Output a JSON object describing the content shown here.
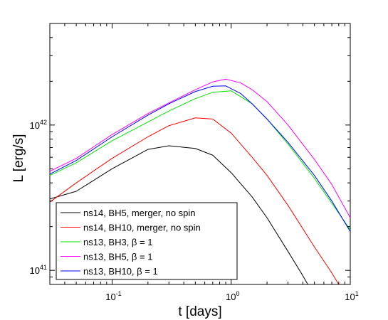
{
  "chart_data": {
    "type": "line",
    "xlabel": "t [days]",
    "ylabel": "L [erg/s]",
    "xscale": "log",
    "yscale": "log",
    "xlim": [
      0.03,
      10
    ],
    "ylim": [
      8e+40,
      5e+42
    ],
    "grid": false,
    "legend_position": "bottom-left",
    "x_ticks": [
      {
        "value": 0.1,
        "base": "10",
        "exp": "-1"
      },
      {
        "value": 1,
        "base": "10",
        "exp": "0"
      },
      {
        "value": 10,
        "base": "10",
        "exp": "1"
      }
    ],
    "y_ticks": [
      {
        "value": 1e+41,
        "base": "10",
        "exp": "41"
      },
      {
        "value": 1e+42,
        "base": "10",
        "exp": "42"
      }
    ],
    "series": [
      {
        "name": "ns14, BH5, merger, no spin",
        "color": "#000000",
        "points": [
          [
            0.03,
            3.1e+41
          ],
          [
            0.05,
            3.5e+41
          ],
          [
            0.1,
            5e+41
          ],
          [
            0.2,
            6.8e+41
          ],
          [
            0.3,
            7.2e+41
          ],
          [
            0.5,
            6.9e+41
          ],
          [
            0.7,
            6.2e+41
          ],
          [
            1.0,
            4.7e+41
          ],
          [
            1.5,
            3.2e+41
          ],
          [
            2.0,
            2.3e+41
          ],
          [
            3.0,
            1.35e+41
          ],
          [
            3.9,
            9.5e+40
          ],
          [
            4.4,
            8e+40
          ]
        ]
      },
      {
        "name": "ns14, BH10, merger, no spin",
        "color": "#ff0000",
        "points": [
          [
            0.03,
            2.95e+41
          ],
          [
            0.05,
            4e+41
          ],
          [
            0.1,
            5.9e+41
          ],
          [
            0.2,
            8.3e+41
          ],
          [
            0.3,
            9.9e+41
          ],
          [
            0.5,
            1.12e+42
          ],
          [
            0.7,
            1.1e+42
          ],
          [
            1.0,
            8.8e+41
          ],
          [
            1.5,
            6e+41
          ],
          [
            2.0,
            4.5e+41
          ],
          [
            3.0,
            2.8e+41
          ],
          [
            5.0,
            1.45e+41
          ],
          [
            7.0,
            9.6e+40
          ],
          [
            8.0,
            8e+40
          ]
        ]
      },
      {
        "name": "ns13, BH3, β = 1",
        "color": "#00e600",
        "points": [
          [
            0.03,
            4.5e+41
          ],
          [
            0.05,
            5.5e+41
          ],
          [
            0.1,
            7.8e+41
          ],
          [
            0.2,
            1.05e+42
          ],
          [
            0.3,
            1.25e+42
          ],
          [
            0.5,
            1.52e+42
          ],
          [
            0.7,
            1.68e+42
          ],
          [
            1.0,
            1.72e+42
          ],
          [
            1.5,
            1.4e+42
          ],
          [
            2.0,
            1.1e+42
          ],
          [
            3.0,
            7.4e+41
          ],
          [
            5.0,
            4.3e+41
          ],
          [
            7.0,
            2.9e+41
          ],
          [
            10.0,
            1.9e+41
          ]
        ]
      },
      {
        "name": "ns13, BH5, β = 1",
        "color": "#ff00ff",
        "points": [
          [
            0.03,
            4.8e+41
          ],
          [
            0.05,
            5.9e+41
          ],
          [
            0.1,
            8.6e+41
          ],
          [
            0.2,
            1.2e+42
          ],
          [
            0.3,
            1.42e+42
          ],
          [
            0.5,
            1.75e+42
          ],
          [
            0.7,
            1.98e+42
          ],
          [
            0.9,
            2.07e+42
          ],
          [
            1.2,
            1.95e+42
          ],
          [
            1.5,
            1.75e+42
          ],
          [
            2.0,
            1.45e+42
          ],
          [
            3.0,
            1e+42
          ],
          [
            5.0,
            5.8e+41
          ],
          [
            7.0,
            3.9e+41
          ],
          [
            10.0,
            2.3e+41
          ]
        ]
      },
      {
        "name": "ns13, BH10, β = 1",
        "color": "#0000ff",
        "points": [
          [
            0.03,
            4.6e+41
          ],
          [
            0.05,
            5.7e+41
          ],
          [
            0.1,
            8.3e+41
          ],
          [
            0.2,
            1.17e+42
          ],
          [
            0.3,
            1.4e+42
          ],
          [
            0.5,
            1.7e+42
          ],
          [
            0.7,
            1.85e+42
          ],
          [
            0.9,
            1.86e+42
          ],
          [
            1.2,
            1.65e+42
          ],
          [
            1.5,
            1.4e+42
          ],
          [
            2.0,
            1.1e+42
          ],
          [
            3.0,
            7.6e+41
          ],
          [
            5.0,
            4.5e+41
          ],
          [
            7.0,
            3e+41
          ],
          [
            10.0,
            1.85e+41
          ]
        ]
      }
    ]
  }
}
